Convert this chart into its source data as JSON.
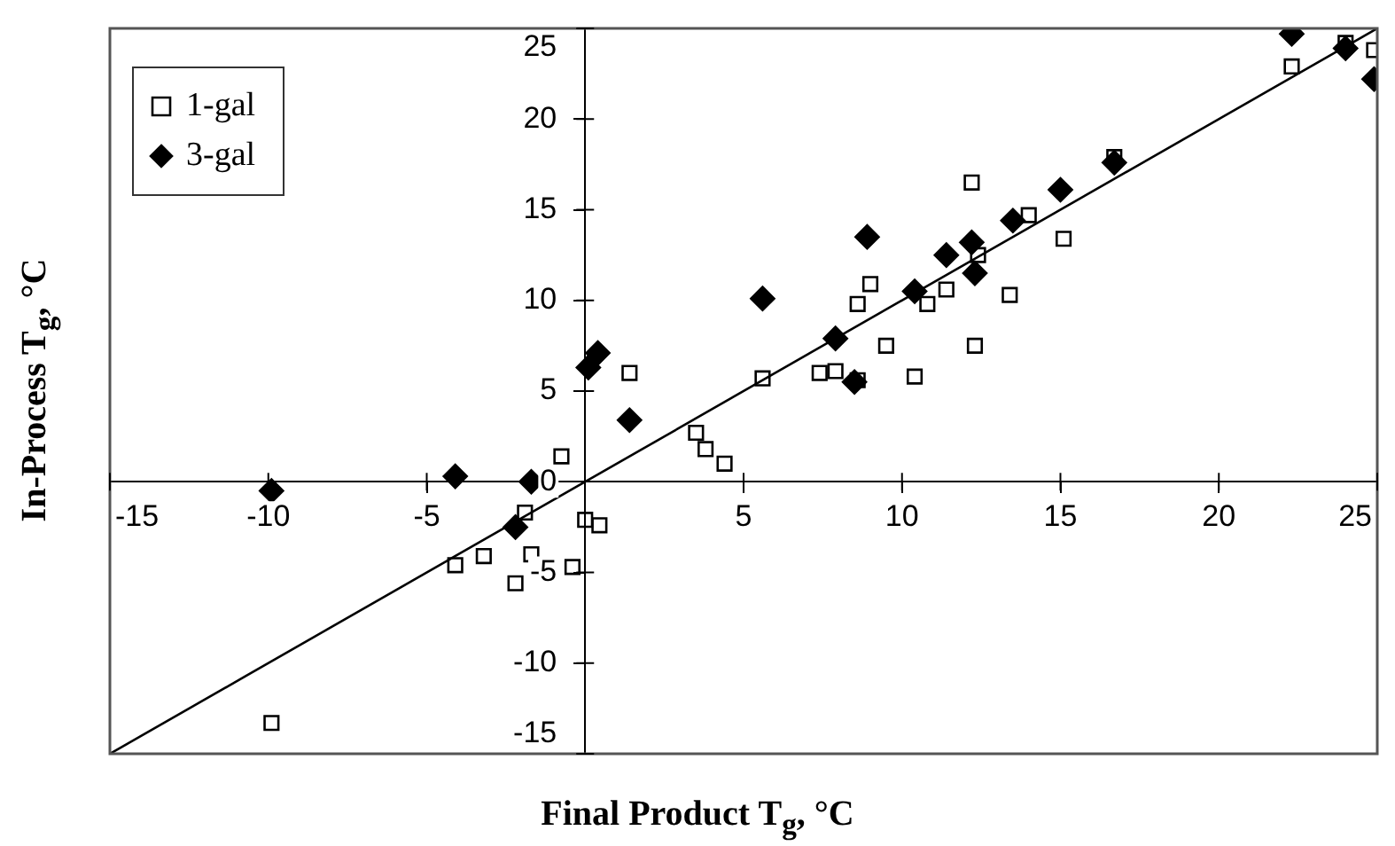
{
  "chart_data": {
    "type": "scatter",
    "xlabel": "Final Product T$_{g}$, °C",
    "ylabel": "In-Process T$_{g}$, °C",
    "xlim": [
      -15,
      25
    ],
    "xticks": [
      -15,
      -10,
      -5,
      {
        "value": 0,
        "label": null
      },
      5,
      10,
      15,
      20,
      25
    ],
    "ylim": [
      -15,
      25
    ],
    "yticks": [
      -15,
      -10,
      -5,
      0,
      5,
      10,
      15,
      20,
      25
    ],
    "grid": false,
    "legend": "top left",
    "series": [
      {
        "name": "1-gal",
        "color": "#000000",
        "marker": "square",
        "x": [
          -9.9,
          -4.1,
          -3.2,
          -2.2,
          -1.7,
          -1.9,
          -0.75,
          -0.4,
          0,
          0.45,
          1.4,
          3.5,
          3.8,
          4.4,
          5.6,
          7.4,
          7.9,
          8.6,
          8.6,
          9,
          9.5,
          10.4,
          10.8,
          11.4,
          12.2,
          12.4,
          12.3,
          13.4,
          14,
          15.1,
          16.7,
          22.3,
          24,
          24.9
        ],
        "values": [
          -13.3,
          -4.6,
          -4.1,
          -5.6,
          -4,
          -1.7,
          1.4,
          -4.7,
          -2.1,
          -2.4,
          6,
          2.7,
          1.8,
          1,
          5.7,
          6,
          6.1,
          5.6,
          9.8,
          10.9,
          7.5,
          5.8,
          9.8,
          10.6,
          16.5,
          12.5,
          7.5,
          10.3,
          14.7,
          13.4,
          17.9,
          22.9,
          24.2,
          23.8
        ]
      },
      {
        "name": "3-gal",
        "color": "#000000",
        "marker": "diamond",
        "x": [
          -9.9,
          -4.1,
          -1.7,
          -2.2,
          0.1,
          0.4,
          1.4,
          5.6,
          7.9,
          8.5,
          8.9,
          10.4,
          11.4,
          12.2,
          12.3,
          13.5,
          15,
          16.7,
          22.3,
          24,
          24.9
        ],
        "values": [
          -0.5,
          0.3,
          0,
          -2.5,
          6.3,
          7.1,
          3.4,
          10.1,
          7.9,
          5.5,
          13.5,
          10.5,
          12.5,
          13.2,
          11.5,
          14.4,
          16.1,
          17.6,
          24.7,
          23.9,
          22.2
        ]
      },
      {
        "type": "line",
        "color": "#000000",
        "marker": "none",
        "x": [
          -15,
          25
        ],
        "values": [
          -15,
          25
        ]
      }
    ]
  }
}
